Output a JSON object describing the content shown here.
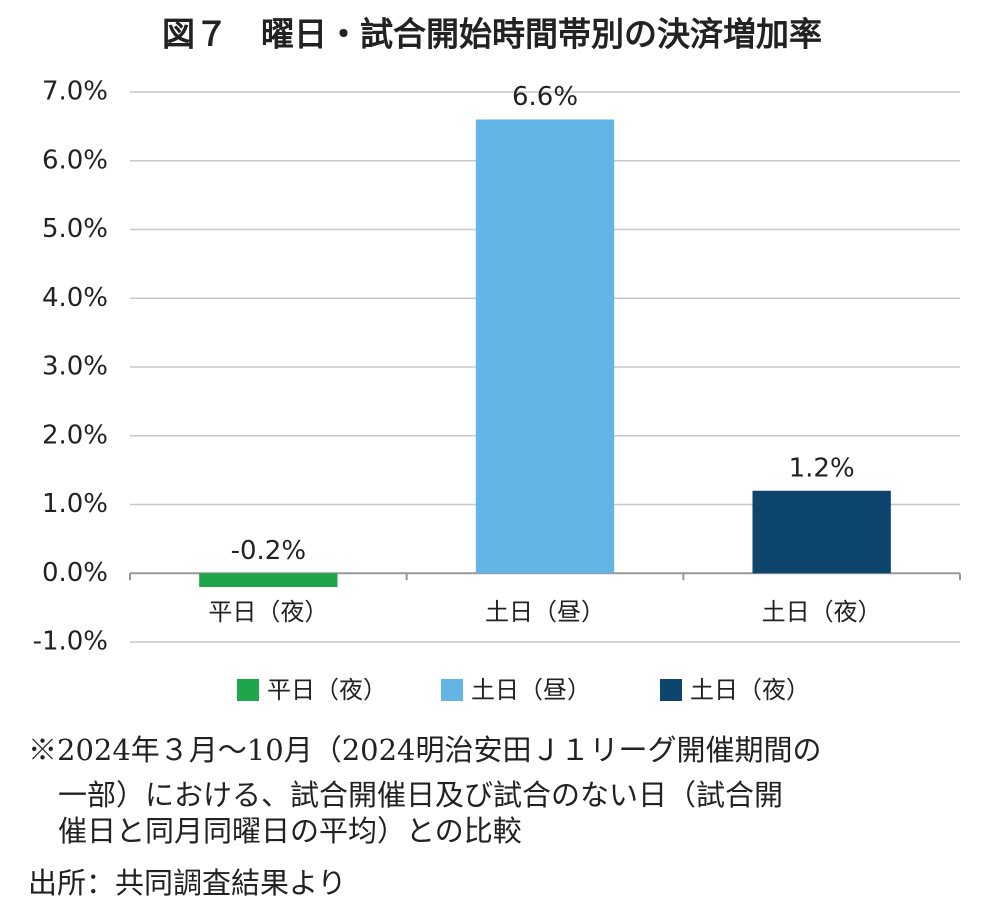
{
  "chart_data": {
    "type": "bar",
    "title": "図７　曜日・試合開始時間帯別の決済増加率",
    "categories": [
      "平日（夜）",
      "土日（昼）",
      "土日（夜）"
    ],
    "values": [
      -0.2,
      6.6,
      1.2
    ],
    "value_labels": [
      "-0.2%",
      "6.6%",
      "1.2%"
    ],
    "colors": [
      "#1fa64b",
      "#63b5e5",
      "#0d456e"
    ],
    "ylim": [
      -1,
      7
    ],
    "yticks": [
      {
        "value": -1,
        "label": "-1.0%"
      },
      {
        "value": 0,
        "label": "0.0%"
      },
      {
        "value": 1,
        "label": "1.0%"
      },
      {
        "value": 2,
        "label": "2.0%"
      },
      {
        "value": 3,
        "label": "3.0%"
      },
      {
        "value": 4,
        "label": "4.0%"
      },
      {
        "value": 5,
        "label": "5.0%"
      },
      {
        "value": 6,
        "label": "6.0%"
      },
      {
        "value": 7,
        "label": "7.0%"
      }
    ],
    "grid": true,
    "legend": "bottom",
    "note": [
      "※2024年３月～10月（2024明治安田Ｊ１リーグ開催期間の",
      "一部）における、試合開催日及び試合のない日（試合開",
      "催日と同月同曜日の平均）との比較"
    ],
    "source": "出所：共同調査結果より"
  }
}
